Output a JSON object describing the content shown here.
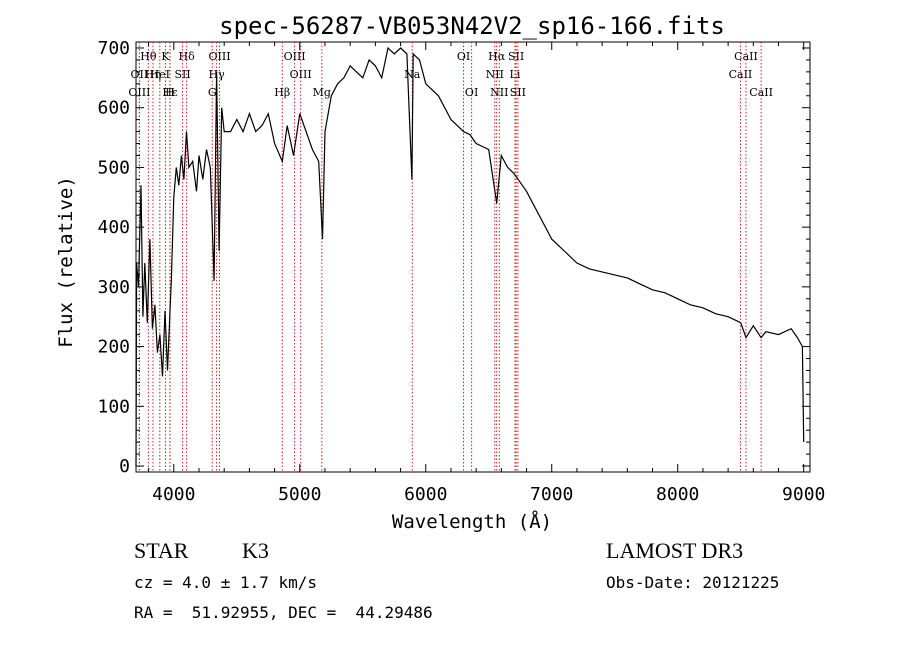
{
  "chart_data": {
    "type": "line",
    "title": "spec-56287-VB053N42V2_sp16-166.fits",
    "xlabel": "Wavelength (Å)",
    "ylabel": "Flux (relative)",
    "xlim": [
      3700,
      9050
    ],
    "ylim": [
      -10,
      710
    ],
    "xticks": [
      4000,
      5000,
      6000,
      7000,
      8000,
      9000
    ],
    "yticks": [
      0,
      100,
      200,
      300,
      400,
      500,
      600,
      700
    ],
    "series": [
      {
        "name": "spectrum",
        "points": [
          [
            3700,
            0
          ],
          [
            3705,
            340
          ],
          [
            3720,
            300
          ],
          [
            3740,
            470
          ],
          [
            3755,
            250
          ],
          [
            3770,
            340
          ],
          [
            3790,
            240
          ],
          [
            3810,
            380
          ],
          [
            3830,
            230
          ],
          [
            3850,
            270
          ],
          [
            3870,
            190
          ],
          [
            3890,
            220
          ],
          [
            3910,
            150
          ],
          [
            3930,
            260
          ],
          [
            3950,
            160
          ],
          [
            3970,
            260
          ],
          [
            3980,
            310
          ],
          [
            4000,
            450
          ],
          [
            4020,
            500
          ],
          [
            4040,
            470
          ],
          [
            4060,
            520
          ],
          [
            4080,
            480
          ],
          [
            4101,
            560
          ],
          [
            4120,
            500
          ],
          [
            4150,
            510
          ],
          [
            4180,
            460
          ],
          [
            4200,
            520
          ],
          [
            4230,
            480
          ],
          [
            4260,
            530
          ],
          [
            4290,
            500
          ],
          [
            4320,
            310
          ],
          [
            4340,
            660
          ],
          [
            4360,
            360
          ],
          [
            4380,
            600
          ],
          [
            4400,
            560
          ],
          [
            4450,
            560
          ],
          [
            4500,
            580
          ],
          [
            4550,
            560
          ],
          [
            4600,
            590
          ],
          [
            4650,
            560
          ],
          [
            4700,
            570
          ],
          [
            4750,
            590
          ],
          [
            4800,
            540
          ],
          [
            4861,
            510
          ],
          [
            4900,
            570
          ],
          [
            4950,
            520
          ],
          [
            5000,
            590
          ],
          [
            5050,
            560
          ],
          [
            5100,
            530
          ],
          [
            5150,
            510
          ],
          [
            5180,
            380
          ],
          [
            5200,
            560
          ],
          [
            5250,
            620
          ],
          [
            5300,
            640
          ],
          [
            5350,
            650
          ],
          [
            5400,
            670
          ],
          [
            5450,
            660
          ],
          [
            5500,
            650
          ],
          [
            5550,
            680
          ],
          [
            5600,
            670
          ],
          [
            5650,
            650
          ],
          [
            5700,
            700
          ],
          [
            5750,
            690
          ],
          [
            5800,
            700
          ],
          [
            5850,
            690
          ],
          [
            5890,
            480
          ],
          [
            5900,
            690
          ],
          [
            5950,
            680
          ],
          [
            6000,
            640
          ],
          [
            6050,
            630
          ],
          [
            6100,
            620
          ],
          [
            6150,
            600
          ],
          [
            6200,
            580
          ],
          [
            6250,
            570
          ],
          [
            6300,
            560
          ],
          [
            6350,
            555
          ],
          [
            6400,
            540
          ],
          [
            6450,
            535
          ],
          [
            6500,
            530
          ],
          [
            6563,
            440
          ],
          [
            6600,
            520
          ],
          [
            6650,
            500
          ],
          [
            6700,
            490
          ],
          [
            6750,
            475
          ],
          [
            6800,
            460
          ],
          [
            6850,
            440
          ],
          [
            6900,
            420
          ],
          [
            6950,
            400
          ],
          [
            7000,
            380
          ],
          [
            7100,
            360
          ],
          [
            7200,
            340
          ],
          [
            7300,
            330
          ],
          [
            7400,
            325
          ],
          [
            7500,
            320
          ],
          [
            7600,
            315
          ],
          [
            7700,
            305
          ],
          [
            7800,
            295
          ],
          [
            7900,
            290
          ],
          [
            8000,
            280
          ],
          [
            8100,
            270
          ],
          [
            8200,
            265
          ],
          [
            8300,
            255
          ],
          [
            8400,
            250
          ],
          [
            8500,
            240
          ],
          [
            8542,
            215
          ],
          [
            8600,
            235
          ],
          [
            8662,
            215
          ],
          [
            8700,
            225
          ],
          [
            8800,
            220
          ],
          [
            8900,
            230
          ],
          [
            8950,
            215
          ],
          [
            8990,
            200
          ],
          [
            9000,
            40
          ]
        ]
      }
    ],
    "lines": [
      {
        "label": "Hθ",
        "x": 3798,
        "row": 0
      },
      {
        "label": "OII",
        "x": 3727,
        "row": 1
      },
      {
        "label": "OIII",
        "x": 3727,
        "row": 2
      },
      {
        "label": "Hη",
        "x": 3835,
        "row": 1
      },
      {
        "label": "HeI",
        "x": 3889,
        "row": 1
      },
      {
        "label": "K",
        "x": 3934,
        "row": 0
      },
      {
        "label": "Hε",
        "x": 3970,
        "row": 2
      },
      {
        "label": "SII",
        "x": 4070,
        "row": 1
      },
      {
        "label": "H",
        "x": 3969,
        "row": 2
      },
      {
        "label": "Hδ",
        "x": 4102,
        "row": 0
      },
      {
        "label": "OIII",
        "x": 4363,
        "row": 0
      },
      {
        "label": "Hγ",
        "x": 4340,
        "row": 1
      },
      {
        "label": "G",
        "x": 4305,
        "row": 2
      },
      {
        "label": "Hβ",
        "x": 4861,
        "row": 2
      },
      {
        "label": "OIII",
        "x": 4959,
        "row": 0
      },
      {
        "label": "OIII",
        "x": 5007,
        "row": 1
      },
      {
        "label": "Mg",
        "x": 5175,
        "row": 2
      },
      {
        "label": "Na",
        "x": 5893,
        "row": 1
      },
      {
        "label": "OI",
        "x": 6300,
        "row": 0
      },
      {
        "label": "OI",
        "x": 6364,
        "row": 2
      },
      {
        "label": "Hα",
        "x": 6563,
        "row": 0
      },
      {
        "label": "NII",
        "x": 6548,
        "row": 1
      },
      {
        "label": "NII",
        "x": 6584,
        "row": 2
      },
      {
        "label": "SII",
        "x": 6717,
        "row": 0
      },
      {
        "label": "Li",
        "x": 6708,
        "row": 1
      },
      {
        "label": "SII",
        "x": 6731,
        "row": 2
      },
      {
        "label": "CaII",
        "x": 8542,
        "row": 0
      },
      {
        "label": "CaII",
        "x": 8498,
        "row": 1
      },
      {
        "label": "CaII",
        "x": 8662,
        "row": 2
      }
    ]
  },
  "info": {
    "class_label": "STAR",
    "subclass": "K3",
    "survey": "LAMOST DR3",
    "cz": "cz = 4.0 ± 1.7 km/s",
    "obs_date": "Obs-Date: 20121225",
    "coords": "RA =  51.92955, DEC =  44.29486"
  }
}
